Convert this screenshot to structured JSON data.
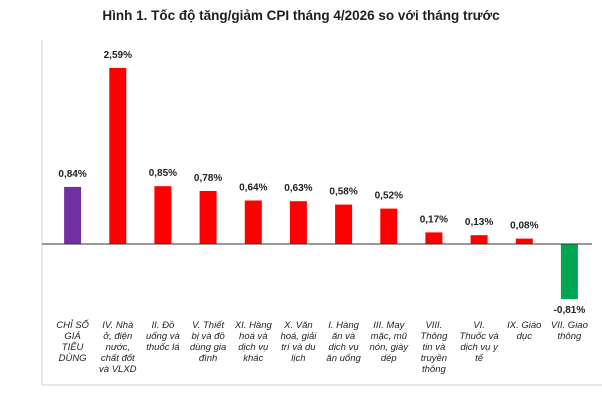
{
  "chart_data": {
    "type": "bar",
    "title": "Hình 1. Tốc độ tăng/giảm CPI tháng 4/2026 so với tháng trước",
    "xlabel": "",
    "ylabel": "",
    "grid": false,
    "legend": "none",
    "ylim": [
      -1.0,
      2.8
    ],
    "categories": [
      [
        "CHỈ SỐ",
        "GIÁ",
        "TIÊU",
        "DÙNG"
      ],
      [
        "IV. Nhà",
        "ở, điện",
        "nước,",
        "chất đốt",
        "và VLXD"
      ],
      [
        "II. Đồ",
        "uống và",
        "thuốc lá"
      ],
      [
        "V. Thiết",
        "bị và đồ",
        "dùng gia",
        "đình"
      ],
      [
        "XI. Hàng",
        "hoá và",
        "dịch vụ",
        "khác"
      ],
      [
        "X. Văn",
        "hoá, giải",
        "trí và du",
        "lịch"
      ],
      [
        "I. Hàng",
        "ăn và",
        "dịch vụ",
        "ăn uống"
      ],
      [
        "III. May",
        "mặc, mũ",
        "nón, giày",
        "dép"
      ],
      [
        "VIII.",
        "Thông",
        "tin và",
        "truyền",
        "thông"
      ],
      [
        "VI.",
        "Thuốc và",
        "dịch vụ y",
        "tế"
      ],
      [
        "IX. Giáo",
        "dục"
      ],
      [
        "VII. Giao",
        "thông"
      ]
    ],
    "values": [
      0.84,
      2.59,
      0.85,
      0.78,
      0.64,
      0.63,
      0.58,
      0.52,
      0.17,
      0.13,
      0.08,
      -0.81
    ],
    "data_labels": [
      "0,84%",
      "2,59%",
      "0,85%",
      "0,78%",
      "0,64%",
      "0,63%",
      "0,58%",
      "0,52%",
      "0,17%",
      "0,13%",
      "0,08%",
      "-0,81%"
    ],
    "colors": {
      "overall": "#7030a0",
      "increase": "#ff0000",
      "decrease": "#00a651",
      "axis": "#333333",
      "frame": "#d0d0d0"
    },
    "bar_colors": [
      "overall",
      "increase",
      "increase",
      "increase",
      "increase",
      "increase",
      "increase",
      "increase",
      "increase",
      "increase",
      "increase",
      "decrease"
    ]
  }
}
